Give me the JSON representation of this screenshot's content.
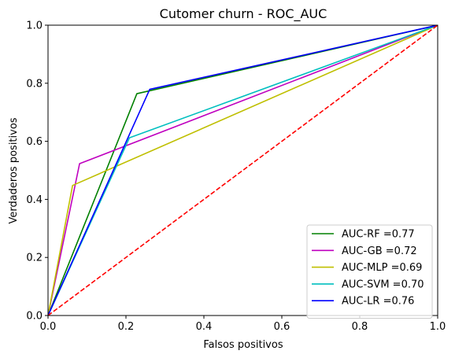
{
  "chart_data": {
    "type": "line",
    "title": "Cutomer churn - ROC_AUC",
    "xlabel": "Falsos positivos",
    "ylabel": "Verdaderos positivos",
    "xlim": [
      0,
      1
    ],
    "ylim": [
      0,
      1
    ],
    "xticks": [
      "0.0",
      "0.2",
      "0.4",
      "0.6",
      "0.8",
      "1.0"
    ],
    "yticks": [
      "0.0",
      "0.2",
      "0.4",
      "0.6",
      "0.8",
      "1.0"
    ],
    "grid": false,
    "legend_position": "lower-right",
    "series": [
      {
        "name": "AUC-RF =0.77",
        "color": "#008000",
        "style": "solid",
        "x": [
          0,
          0.228,
          1
        ],
        "y": [
          0,
          0.764,
          1
        ]
      },
      {
        "name": "AUC-GB =0.72",
        "color": "#bf00bf",
        "style": "solid",
        "x": [
          0,
          0.081,
          1
        ],
        "y": [
          0,
          0.523,
          1
        ]
      },
      {
        "name": "AUC-MLP =0.69",
        "color": "#bfbf00",
        "style": "solid",
        "x": [
          0,
          0.063,
          1
        ],
        "y": [
          0,
          0.448,
          1
        ]
      },
      {
        "name": "AUC-SVM =0.70",
        "color": "#00bfbf",
        "style": "solid",
        "x": [
          0,
          0.209,
          1
        ],
        "y": [
          0,
          0.612,
          1
        ]
      },
      {
        "name": "AUC-LR =0.76",
        "color": "#0000ff",
        "style": "solid",
        "x": [
          0,
          0.261,
          1
        ],
        "y": [
          0,
          0.779,
          1
        ]
      },
      {
        "name": "",
        "color": "#ff0000",
        "style": "dashed",
        "x": [
          0,
          1
        ],
        "y": [
          0,
          1
        ]
      }
    ]
  }
}
